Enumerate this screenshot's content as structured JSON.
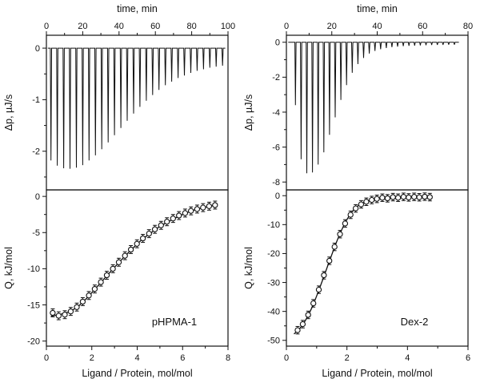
{
  "figure": {
    "background": "#ffffff",
    "line_color": "#111111",
    "marker_fill": "#ffffff"
  },
  "chart_data": [
    {
      "type": "line",
      "panel": "pHPMA-1",
      "subplot": "thermogram",
      "xlabel": "time, min",
      "ylabel": "Δp, µJ/s",
      "xlim": [
        0,
        100
      ],
      "xticks": [
        0,
        20,
        40,
        60,
        80,
        100
      ],
      "xminor": 10,
      "ylim": [
        -2.75,
        0.25
      ],
      "yticks": [
        0,
        -1,
        -2
      ],
      "yminor": 0.5,
      "baseline_start": 0.8,
      "baseline_end": 98.5,
      "spike_halfwidth": 0.35,
      "spikes": [
        [
          2.5,
          -2.18
        ],
        [
          6,
          -2.28
        ],
        [
          9.5,
          -2.33
        ],
        [
          13,
          -2.34
        ],
        [
          16.5,
          -2.32
        ],
        [
          20,
          -2.27
        ],
        [
          23.5,
          -2.18
        ],
        [
          27,
          -2.08
        ],
        [
          30.5,
          -1.96
        ],
        [
          34,
          -1.83
        ],
        [
          37.5,
          -1.69
        ],
        [
          41,
          -1.55
        ],
        [
          44.5,
          -1.41
        ],
        [
          48,
          -1.27
        ],
        [
          51.5,
          -1.14
        ],
        [
          55,
          -1.02
        ],
        [
          58.5,
          -0.91
        ],
        [
          62,
          -0.81
        ],
        [
          65.5,
          -0.72
        ],
        [
          69,
          -0.65
        ],
        [
          72.5,
          -0.58
        ],
        [
          76,
          -0.53
        ],
        [
          79.5,
          -0.48
        ],
        [
          83,
          -0.44
        ],
        [
          86.5,
          -0.41
        ],
        [
          90,
          -0.38
        ],
        [
          93.5,
          -0.36
        ],
        [
          97,
          -0.34
        ]
      ]
    },
    {
      "type": "scatter",
      "panel": "pHPMA-1",
      "subplot": "isotherm",
      "label": "pHPMA-1",
      "xlabel": "Ligand / Protein, mol/mol",
      "ylabel": "Q, kJ/mol",
      "xlim": [
        0,
        8
      ],
      "xticks": [
        0,
        2,
        4,
        6,
        8
      ],
      "xminor": 1,
      "ylim": [
        -20.7,
        0.9
      ],
      "yticks": [
        0,
        -5,
        -10,
        -15,
        -20
      ],
      "yminor": 2.5,
      "error": 0.55,
      "points": [
        [
          0.28,
          -16.1
        ],
        [
          0.54,
          -16.5
        ],
        [
          0.81,
          -16.35
        ],
        [
          1.07,
          -15.9
        ],
        [
          1.34,
          -15.3
        ],
        [
          1.6,
          -14.55
        ],
        [
          1.87,
          -13.7
        ],
        [
          2.13,
          -12.8
        ],
        [
          2.4,
          -11.85
        ],
        [
          2.66,
          -10.9
        ],
        [
          2.93,
          -10.0
        ],
        [
          3.19,
          -9.1
        ],
        [
          3.46,
          -8.2
        ],
        [
          3.72,
          -7.35
        ],
        [
          3.99,
          -6.55
        ],
        [
          4.25,
          -5.8
        ],
        [
          4.52,
          -5.15
        ],
        [
          4.78,
          -4.55
        ],
        [
          5.05,
          -4.0
        ],
        [
          5.31,
          -3.5
        ],
        [
          5.58,
          -3.05
        ],
        [
          5.84,
          -2.65
        ],
        [
          6.11,
          -2.3
        ],
        [
          6.37,
          -2.0
        ],
        [
          6.64,
          -1.75
        ],
        [
          6.9,
          -1.55
        ],
        [
          7.17,
          -1.35
        ],
        [
          7.43,
          -1.2
        ]
      ],
      "fit": [
        [
          0.2,
          -16.55
        ],
        [
          0.6,
          -16.3
        ],
        [
          1.0,
          -15.95
        ],
        [
          1.4,
          -15.2
        ],
        [
          1.8,
          -14.0
        ],
        [
          2.2,
          -12.6
        ],
        [
          2.6,
          -11.2
        ],
        [
          3.0,
          -9.8
        ],
        [
          3.4,
          -8.45
        ],
        [
          3.8,
          -7.2
        ],
        [
          4.2,
          -6.0
        ],
        [
          4.6,
          -5.05
        ],
        [
          5.0,
          -4.15
        ],
        [
          5.4,
          -3.45
        ],
        [
          5.8,
          -2.8
        ],
        [
          6.2,
          -2.25
        ],
        [
          6.6,
          -1.8
        ],
        [
          7.0,
          -1.5
        ],
        [
          7.45,
          -1.2
        ]
      ]
    },
    {
      "type": "line",
      "panel": "Dex-2",
      "subplot": "thermogram",
      "xlabel": "time, min",
      "ylabel": "Δp, µJ/s",
      "xlim": [
        0,
        80
      ],
      "xticks": [
        0,
        20,
        40,
        60,
        80
      ],
      "xminor": 10,
      "ylim": [
        -8.45,
        0.4
      ],
      "yticks": [
        0,
        -2,
        -4,
        -6,
        -8
      ],
      "yminor": 1,
      "baseline_start": 0.8,
      "baseline_end": 76,
      "spike_halfwidth": 0.28,
      "spikes": [
        [
          4,
          -3.6
        ],
        [
          6.5,
          -6.7
        ],
        [
          9,
          -7.5
        ],
        [
          11.5,
          -7.45
        ],
        [
          14,
          -7.0
        ],
        [
          16.5,
          -6.3
        ],
        [
          19,
          -5.3
        ],
        [
          21.5,
          -4.3
        ],
        [
          24,
          -3.3
        ],
        [
          26.5,
          -2.45
        ],
        [
          29,
          -1.75
        ],
        [
          31.5,
          -1.25
        ],
        [
          34,
          -0.9
        ],
        [
          36.5,
          -0.65
        ],
        [
          39,
          -0.5
        ],
        [
          41.5,
          -0.4
        ],
        [
          44,
          -0.33
        ],
        [
          46.5,
          -0.28
        ],
        [
          49,
          -0.25
        ],
        [
          51.5,
          -0.22
        ],
        [
          54,
          -0.2
        ],
        [
          56.5,
          -0.19
        ],
        [
          59,
          -0.18
        ],
        [
          61.5,
          -0.17
        ],
        [
          64,
          -0.16
        ],
        [
          66.5,
          -0.15
        ],
        [
          69,
          -0.15
        ],
        [
          71.5,
          -0.14
        ],
        [
          74,
          -0.14
        ]
      ]
    },
    {
      "type": "scatter",
      "panel": "Dex-2",
      "subplot": "isotherm",
      "label": "Dex-2",
      "xlabel": "Ligand / Protein, mol/mol",
      "ylabel": "Q, kJ/mol",
      "xlim": [
        0,
        6
      ],
      "xticks": [
        0,
        2,
        4,
        6
      ],
      "xminor": 1,
      "ylim": [
        -52,
        2
      ],
      "yticks": [
        0,
        -10,
        -20,
        -30,
        -40,
        -50
      ],
      "yminor": 5,
      "error": 1.3,
      "points": [
        [
          0.37,
          -46.5
        ],
        [
          0.54,
          -44.4
        ],
        [
          0.72,
          -41.2
        ],
        [
          0.89,
          -37.2
        ],
        [
          1.07,
          -32.5
        ],
        [
          1.24,
          -27.5
        ],
        [
          1.42,
          -22.5
        ],
        [
          1.59,
          -17.7
        ],
        [
          1.77,
          -13.3
        ],
        [
          1.94,
          -9.6
        ],
        [
          2.12,
          -6.6
        ],
        [
          2.29,
          -4.4
        ],
        [
          2.47,
          -3.0
        ],
        [
          2.64,
          -2.1
        ],
        [
          2.82,
          -1.5
        ],
        [
          2.99,
          -1.1
        ],
        [
          3.17,
          -0.7
        ],
        [
          3.34,
          -0.9
        ],
        [
          3.52,
          -0.5
        ],
        [
          3.69,
          -0.7
        ],
        [
          3.87,
          -0.4
        ],
        [
          4.04,
          -0.6
        ],
        [
          4.22,
          -0.4
        ],
        [
          4.39,
          -0.55
        ],
        [
          4.57,
          -0.35
        ],
        [
          4.74,
          -0.5
        ]
      ],
      "fit": [
        [
          0.25,
          -47.8
        ],
        [
          0.45,
          -45.8
        ],
        [
          0.65,
          -42.7
        ],
        [
          0.85,
          -38.5
        ],
        [
          1.05,
          -33.3
        ],
        [
          1.25,
          -27.6
        ],
        [
          1.45,
          -21.8
        ],
        [
          1.65,
          -16.2
        ],
        [
          1.85,
          -11.3
        ],
        [
          2.05,
          -7.4
        ],
        [
          2.25,
          -4.6
        ],
        [
          2.45,
          -2.9
        ],
        [
          2.65,
          -1.9
        ],
        [
          2.85,
          -1.3
        ],
        [
          3.05,
          -0.95
        ],
        [
          3.3,
          -0.75
        ],
        [
          3.6,
          -0.6
        ],
        [
          4.0,
          -0.5
        ],
        [
          4.4,
          -0.45
        ],
        [
          4.8,
          -0.4
        ]
      ]
    }
  ]
}
